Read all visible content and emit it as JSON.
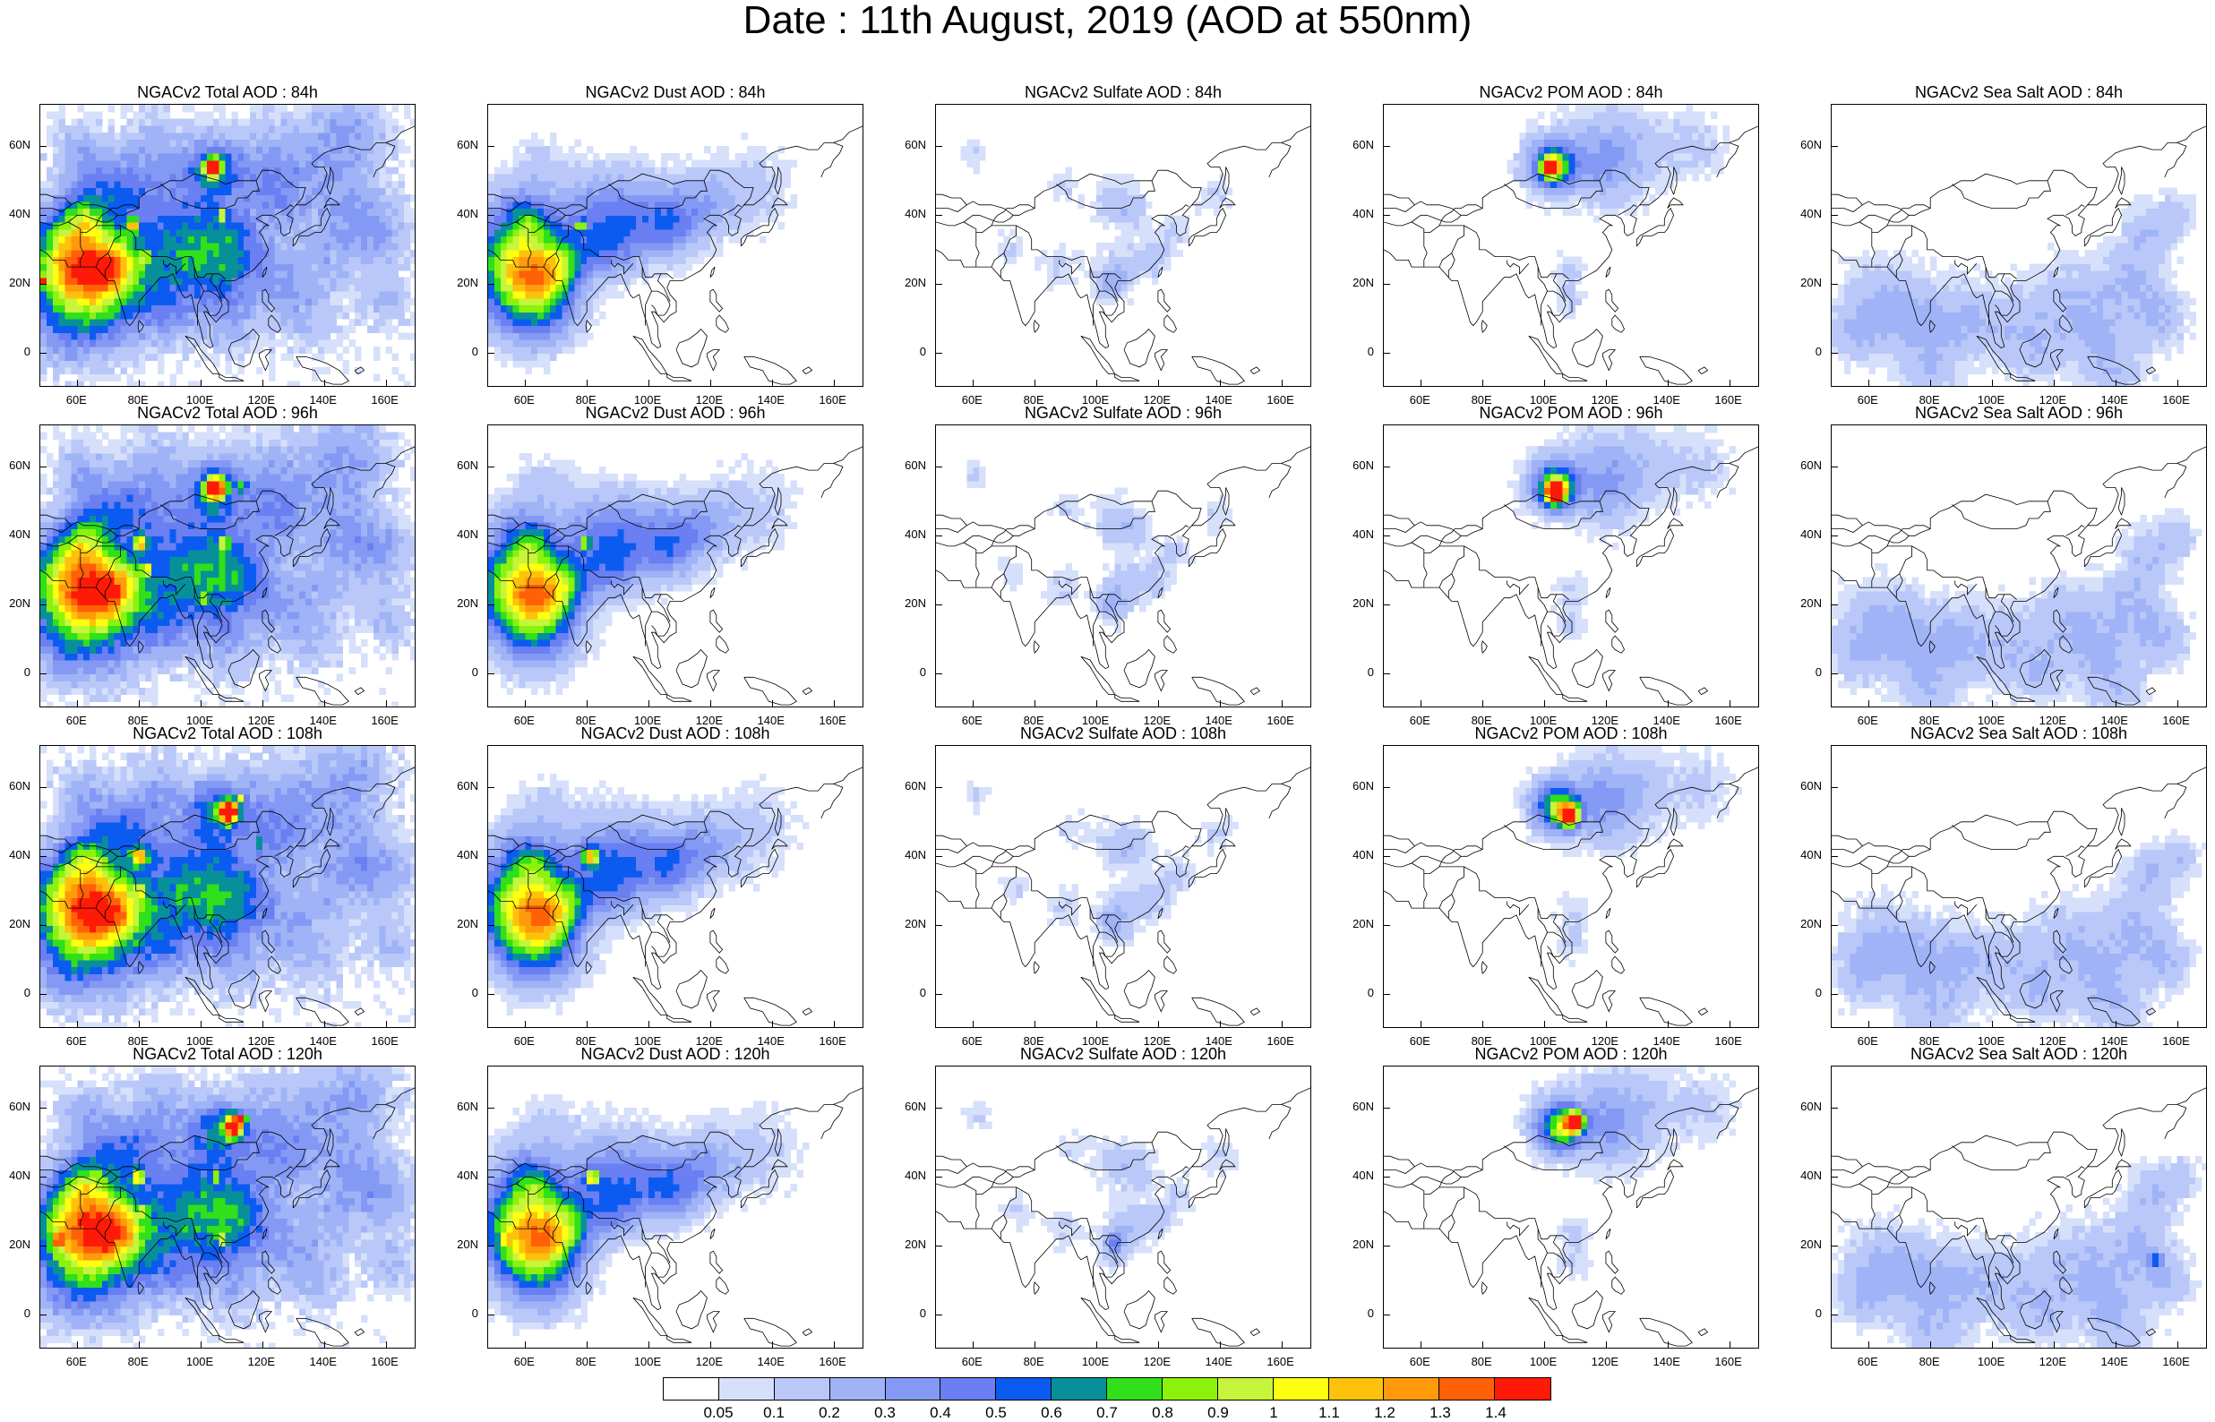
{
  "title": "Date : 11th August, 2019 (AOD at 550nm)",
  "axes": {
    "lat_labels": [
      "60N",
      "40N",
      "20N",
      "0"
    ],
    "lat_values": [
      60,
      40,
      20,
      0
    ],
    "lon_labels": [
      "60E",
      "80E",
      "100E",
      "120E",
      "140E",
      "160E"
    ],
    "lon_values": [
      60,
      80,
      100,
      120,
      140,
      160
    ],
    "lon_range": [
      48,
      170
    ],
    "lat_range": [
      -10,
      72
    ]
  },
  "panels": [
    {
      "title": "NGACv2 Total AOD : 84h",
      "species": "total",
      "hour": 84
    },
    {
      "title": "NGACv2 Dust AOD : 84h",
      "species": "dust",
      "hour": 84
    },
    {
      "title": "NGACv2 Sulfate AOD : 84h",
      "species": "sulfate",
      "hour": 84
    },
    {
      "title": "NGACv2 POM AOD : 84h",
      "species": "pom",
      "hour": 84
    },
    {
      "title": "NGACv2 Sea Salt AOD : 84h",
      "species": "seasalt",
      "hour": 84
    },
    {
      "title": "NGACv2 Total AOD : 96h",
      "species": "total",
      "hour": 96
    },
    {
      "title": "NGACv2 Dust AOD : 96h",
      "species": "dust",
      "hour": 96
    },
    {
      "title": "NGACv2 Sulfate AOD : 96h",
      "species": "sulfate",
      "hour": 96
    },
    {
      "title": "NGACv2 POM AOD : 96h",
      "species": "pom",
      "hour": 96
    },
    {
      "title": "NGACv2 Sea Salt AOD : 96h",
      "species": "seasalt",
      "hour": 96
    },
    {
      "title": "NGACv2 Total AOD : 108h",
      "species": "total",
      "hour": 108
    },
    {
      "title": "NGACv2 Dust AOD : 108h",
      "species": "dust",
      "hour": 108
    },
    {
      "title": "NGACv2 Sulfate AOD : 108h",
      "species": "sulfate",
      "hour": 108
    },
    {
      "title": "NGACv2 POM AOD : 108h",
      "species": "pom",
      "hour": 108
    },
    {
      "title": "NGACv2 Sea Salt AOD : 108h",
      "species": "seasalt",
      "hour": 108
    },
    {
      "title": "NGACv2 Total AOD : 120h",
      "species": "total",
      "hour": 120
    },
    {
      "title": "NGACv2 Dust AOD : 120h",
      "species": "dust",
      "hour": 120
    },
    {
      "title": "NGACv2 Sulfate AOD : 120h",
      "species": "sulfate",
      "hour": 120
    },
    {
      "title": "NGACv2 POM AOD : 120h",
      "species": "pom",
      "hour": 120
    },
    {
      "title": "NGACv2 Sea Salt  AOD : 120h",
      "species": "seasalt",
      "hour": 120
    }
  ],
  "colorbar": {
    "colors": [
      "#ffffff",
      "#d6e0fb",
      "#b9c8f8",
      "#9fb3f6",
      "#8499f4",
      "#6a7ff2",
      "#0c5bf0",
      "#08909a",
      "#2fe01a",
      "#8cf20d",
      "#c6f53c",
      "#ffff10",
      "#ffc20c",
      "#ff9a0a",
      "#ff6008",
      "#ff1a08"
    ],
    "labels": [
      "0.05",
      "0.1",
      "0.2",
      "0.3",
      "0.4",
      "0.5",
      "0.6",
      "0.7",
      "0.8",
      "0.9",
      "1",
      "1.1",
      "1.2",
      "1.3",
      "1.4"
    ]
  }
}
